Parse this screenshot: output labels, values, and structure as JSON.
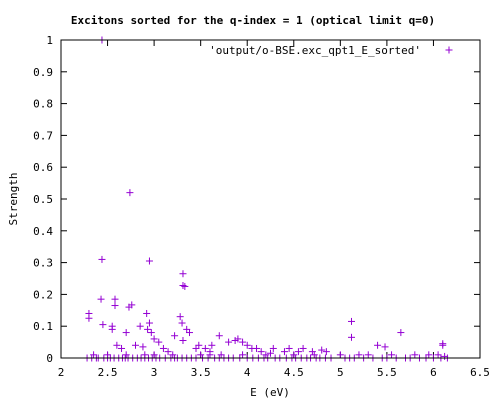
{
  "chart_data": {
    "type": "scatter",
    "title": "Excitons sorted for the q-index = 1 (optical limit q=0)",
    "xlabel": "E (eV)",
    "ylabel": "Strength",
    "xlim": [
      2,
      6.5
    ],
    "ylim": [
      0,
      1
    ],
    "x_ticks": [
      "2",
      "2.5",
      "3",
      "3.5",
      "4",
      "4.5",
      "5",
      "5.5",
      "6",
      "6.5"
    ],
    "y_ticks": [
      "0",
      "0.1",
      "0.2",
      "0.3",
      "0.4",
      "0.5",
      "0.6",
      "0.7",
      "0.8",
      "0.9",
      "1"
    ],
    "marker": "plus",
    "marker_color": "#9400d3",
    "legend_position": "top-right",
    "series": [
      {
        "name": "'output/o-BSE.exc_qpt1_E_sorted'",
        "points": [
          [
            2.44,
            1.0
          ],
          [
            2.44,
            0.31
          ],
          [
            2.74,
            0.52
          ],
          [
            2.95,
            0.305
          ],
          [
            3.31,
            0.265
          ],
          [
            3.31,
            0.228
          ],
          [
            3.33,
            0.225
          ],
          [
            2.43,
            0.185
          ],
          [
            2.58,
            0.185
          ],
          [
            2.58,
            0.165
          ],
          [
            2.73,
            0.16
          ],
          [
            2.76,
            0.167
          ],
          [
            2.92,
            0.14
          ],
          [
            2.95,
            0.11
          ],
          [
            2.3,
            0.14
          ],
          [
            2.3,
            0.125
          ],
          [
            2.45,
            0.105
          ],
          [
            2.55,
            0.1
          ],
          [
            2.55,
            0.09
          ],
          [
            2.7,
            0.08
          ],
          [
            2.85,
            0.1
          ],
          [
            2.93,
            0.09
          ],
          [
            2.97,
            0.08
          ],
          [
            3.0,
            0.06
          ],
          [
            3.05,
            0.05
          ],
          [
            3.22,
            0.07
          ],
          [
            3.28,
            0.13
          ],
          [
            3.3,
            0.11
          ],
          [
            3.35,
            0.09
          ],
          [
            3.38,
            0.08
          ],
          [
            3.31,
            0.055
          ],
          [
            3.48,
            0.04
          ],
          [
            3.55,
            0.03
          ],
          [
            3.62,
            0.04
          ],
          [
            3.7,
            0.07
          ],
          [
            3.8,
            0.05
          ],
          [
            3.87,
            0.055
          ],
          [
            3.9,
            0.06
          ],
          [
            3.95,
            0.05
          ],
          [
            4.05,
            0.03
          ],
          [
            4.15,
            0.02
          ],
          [
            4.28,
            0.03
          ],
          [
            4.4,
            0.02
          ],
          [
            4.55,
            0.02
          ],
          [
            4.6,
            0.03
          ],
          [
            4.7,
            0.02
          ],
          [
            4.85,
            0.02
          ],
          [
            5.12,
            0.115
          ],
          [
            5.12,
            0.065
          ],
          [
            5.4,
            0.04
          ],
          [
            5.65,
            0.08
          ],
          [
            5.48,
            0.035
          ],
          [
            6.1,
            0.045
          ],
          [
            6.1,
            0.04
          ],
          [
            2.6,
            0.04
          ],
          [
            2.65,
            0.03
          ],
          [
            2.8,
            0.04
          ],
          [
            2.88,
            0.035
          ],
          [
            3.1,
            0.03
          ],
          [
            3.15,
            0.02
          ],
          [
            3.45,
            0.03
          ],
          [
            3.6,
            0.02
          ],
          [
            4.0,
            0.04
          ],
          [
            4.1,
            0.03
          ],
          [
            4.25,
            0.015
          ],
          [
            4.45,
            0.03
          ],
          [
            4.8,
            0.025
          ],
          [
            5.0,
            0.01
          ],
          [
            5.2,
            0.01
          ],
          [
            5.3,
            0.01
          ],
          [
            5.55,
            0.01
          ],
          [
            5.8,
            0.01
          ],
          [
            5.95,
            0.01
          ],
          [
            6.05,
            0.01
          ],
          [
            6.12,
            0.005
          ],
          [
            2.35,
            0.01
          ],
          [
            2.4,
            0.0
          ],
          [
            2.5,
            0.0
          ],
          [
            2.62,
            0.0
          ],
          [
            2.72,
            0.0
          ],
          [
            2.82,
            0.0
          ],
          [
            2.9,
            0.0
          ],
          [
            3.02,
            0.0
          ],
          [
            3.12,
            0.0
          ],
          [
            3.25,
            0.0
          ],
          [
            3.4,
            0.0
          ],
          [
            3.52,
            0.0
          ],
          [
            3.65,
            0.0
          ],
          [
            3.75,
            0.0
          ],
          [
            3.85,
            0.0
          ],
          [
            4.0,
            0.0
          ],
          [
            4.12,
            0.0
          ],
          [
            4.22,
            0.0
          ],
          [
            4.35,
            0.0
          ],
          [
            4.48,
            0.0
          ],
          [
            4.58,
            0.0
          ],
          [
            4.68,
            0.0
          ],
          [
            4.78,
            0.0
          ],
          [
            4.9,
            0.0
          ],
          [
            5.05,
            0.0
          ],
          [
            5.15,
            0.0
          ],
          [
            5.25,
            0.0
          ],
          [
            5.45,
            0.0
          ],
          [
            5.6,
            0.0
          ],
          [
            5.7,
            0.0
          ],
          [
            5.85,
            0.0
          ],
          [
            6.0,
            0.0
          ],
          [
            6.15,
            0.0
          ],
          [
            2.28,
            0.0
          ],
          [
            2.33,
            0.0
          ],
          [
            2.38,
            0.0
          ],
          [
            2.46,
            0.0
          ],
          [
            2.53,
            0.0
          ],
          [
            2.57,
            0.0
          ],
          [
            2.66,
            0.0
          ],
          [
            2.69,
            0.0
          ],
          [
            2.77,
            0.0
          ],
          [
            2.86,
            0.0
          ],
          [
            2.94,
            0.0
          ],
          [
            2.98,
            0.0
          ],
          [
            3.06,
            0.0
          ],
          [
            3.18,
            0.0
          ],
          [
            3.22,
            0.0
          ],
          [
            3.3,
            0.0
          ],
          [
            3.35,
            0.0
          ],
          [
            3.45,
            0.0
          ],
          [
            3.58,
            0.0
          ],
          [
            3.7,
            0.0
          ],
          [
            3.8,
            0.0
          ],
          [
            3.92,
            0.0
          ],
          [
            4.06,
            0.0
          ],
          [
            4.18,
            0.0
          ],
          [
            4.3,
            0.0
          ],
          [
            4.42,
            0.0
          ],
          [
            4.52,
            0.0
          ],
          [
            4.64,
            0.0
          ],
          [
            4.74,
            0.0
          ],
          [
            4.84,
            0.0
          ],
          [
            5.1,
            0.0
          ],
          [
            5.35,
            0.0
          ],
          [
            5.5,
            0.0
          ],
          [
            5.75,
            0.0
          ],
          [
            5.92,
            0.0
          ],
          [
            6.08,
            0.0
          ],
          [
            2.9,
            0.01
          ],
          [
            3.0,
            0.01
          ],
          [
            3.2,
            0.01
          ],
          [
            3.5,
            0.01
          ],
          [
            3.72,
            0.01
          ],
          [
            3.95,
            0.01
          ],
          [
            4.2,
            0.01
          ],
          [
            4.5,
            0.01
          ],
          [
            4.72,
            0.01
          ],
          [
            2.7,
            0.01
          ],
          [
            2.5,
            0.01
          ],
          [
            3.6,
            0.01
          ]
        ]
      }
    ]
  }
}
